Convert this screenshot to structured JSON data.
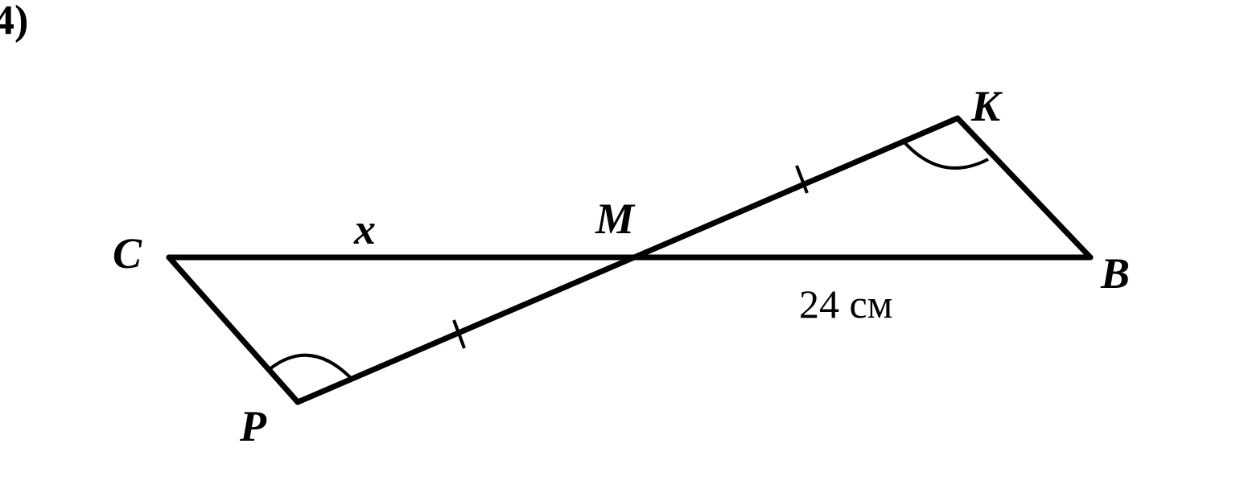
{
  "problem_number": "4)",
  "points": {
    "C": "C",
    "M": "M",
    "B": "B",
    "K": "K",
    "P": "P"
  },
  "segment_labels": {
    "CM": "x",
    "MB": "24 см"
  },
  "markings": {
    "equal_segments": [
      "MK",
      "MP"
    ],
    "equal_angles": [
      "K",
      "P"
    ]
  }
}
